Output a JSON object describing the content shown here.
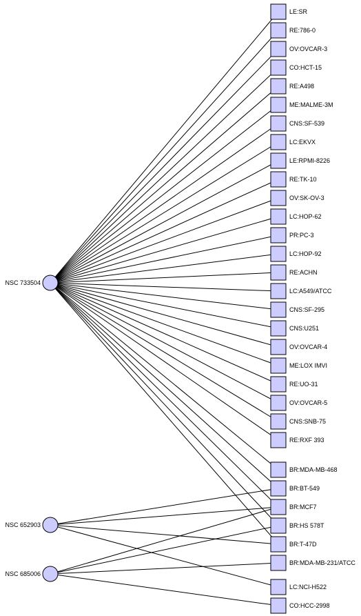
{
  "compounds": [
    {
      "id": "c1",
      "label": "NSC 733504"
    },
    {
      "id": "c2",
      "label": "NSC 652903"
    },
    {
      "id": "c3",
      "label": "NSC 685006"
    }
  ],
  "cell_lines": [
    "LE:SR",
    "RE:786-0",
    "OV:OVCAR-3",
    "CO:HCT-15",
    "RE:A498",
    "ME:MALME-3M",
    "CNS:SF-539",
    "LC:EKVX",
    "LE:RPMI-8226",
    "RE:TK-10",
    "OV:SK-OV-3",
    "LC:HOP-62",
    "PR:PC-3",
    "LC:HOP-92",
    "RE:ACHN",
    "LC:A549/ATCC",
    "CNS:SF-295",
    "CNS:U251",
    "OV:OVCAR-4",
    "ME:LOX IMVI",
    "RE:UO-31",
    "OV:OVCAR-5",
    "CNS:SNB-75",
    "RE:RXF 393",
    "BR:MDA-MB-468",
    "BR:BT-549",
    "BR:MCF7",
    "BR:HS 578T",
    "BR:T-47D",
    "BR:MDA-MB-231/ATCC",
    "LC:NCI-H522",
    "CO:HCC-2998"
  ],
  "edges": [
    [
      "NSC 733504",
      "LE:SR"
    ],
    [
      "NSC 733504",
      "RE:786-0"
    ],
    [
      "NSC 733504",
      "OV:OVCAR-3"
    ],
    [
      "NSC 733504",
      "CO:HCT-15"
    ],
    [
      "NSC 733504",
      "RE:A498"
    ],
    [
      "NSC 733504",
      "ME:MALME-3M"
    ],
    [
      "NSC 733504",
      "CNS:SF-539"
    ],
    [
      "NSC 733504",
      "LC:EKVX"
    ],
    [
      "NSC 733504",
      "LE:RPMI-8226"
    ],
    [
      "NSC 733504",
      "RE:TK-10"
    ],
    [
      "NSC 733504",
      "OV:SK-OV-3"
    ],
    [
      "NSC 733504",
      "LC:HOP-62"
    ],
    [
      "NSC 733504",
      "PR:PC-3"
    ],
    [
      "NSC 733504",
      "LC:HOP-92"
    ],
    [
      "NSC 733504",
      "RE:ACHN"
    ],
    [
      "NSC 733504",
      "LC:A549/ATCC"
    ],
    [
      "NSC 733504",
      "CNS:SF-295"
    ],
    [
      "NSC 733504",
      "CNS:U251"
    ],
    [
      "NSC 733504",
      "OV:OVCAR-4"
    ],
    [
      "NSC 733504",
      "ME:LOX IMVI"
    ],
    [
      "NSC 733504",
      "RE:UO-31"
    ],
    [
      "NSC 733504",
      "OV:OVCAR-5"
    ],
    [
      "NSC 733504",
      "CNS:SNB-75"
    ],
    [
      "NSC 733504",
      "RE:RXF 393"
    ],
    [
      "NSC 733504",
      "BR:MDA-MB-468"
    ],
    [
      "NSC 733504",
      "BR:BT-549"
    ],
    [
      "NSC 733504",
      "BR:MCF7"
    ],
    [
      "NSC 733504",
      "BR:HS 578T"
    ],
    [
      "NSC 733504",
      "BR:T-47D"
    ],
    [
      "NSC 652903",
      "BR:BT-549"
    ],
    [
      "NSC 652903",
      "BR:MCF7"
    ],
    [
      "NSC 652903",
      "BR:T-47D"
    ],
    [
      "NSC 652903",
      "LC:NCI-H522"
    ],
    [
      "NSC 685006",
      "BR:MCF7"
    ],
    [
      "NSC 685006",
      "BR:HS 578T"
    ],
    [
      "NSC 685006",
      "BR:MDA-MB-231/ATCC"
    ],
    [
      "NSC 685006",
      "CO:HCC-2998"
    ]
  ],
  "colors": {
    "node_fill": "#ccccff",
    "stroke": "#000000"
  }
}
